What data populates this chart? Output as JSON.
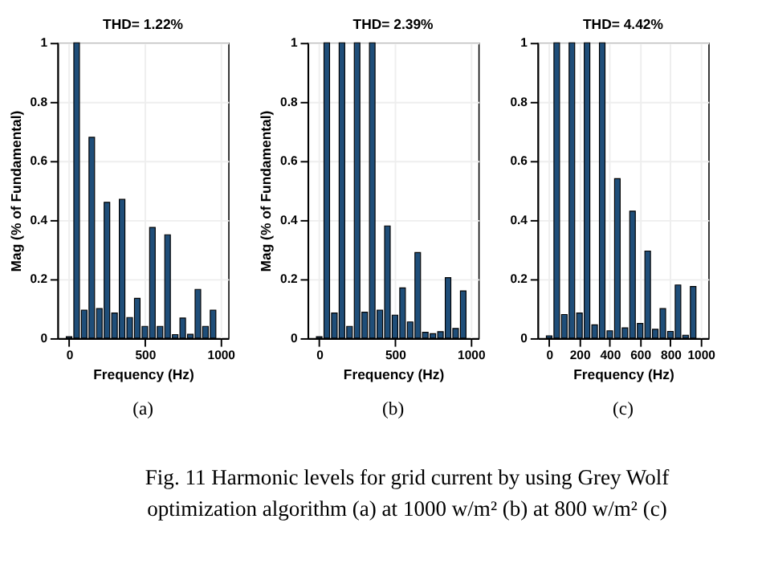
{
  "chart_data": [
    {
      "type": "bar",
      "title": "THD= 1.22%",
      "xlabel": "Frequency (Hz)",
      "ylabel": "Mag (% of Fundamental)",
      "x": [
        0,
        50,
        100,
        150,
        200,
        250,
        300,
        350,
        400,
        450,
        500,
        550,
        600,
        650,
        700,
        750,
        800,
        850,
        900,
        950
      ],
      "color": "#1f4e79",
      "values": [
        0.005,
        1,
        0.095,
        0.68,
        0.1,
        0.46,
        0.085,
        0.47,
        0.07,
        0.135,
        0.04,
        0.375,
        0.04,
        0.35,
        0.012,
        0.068,
        0.013,
        0.165,
        0.04,
        0.095
      ],
      "xlim": [
        -25,
        1000
      ],
      "xticks": [
        0,
        500,
        1000
      ],
      "ylim": [
        0,
        1
      ],
      "yticks": [
        0,
        0.2,
        0.4,
        0.6,
        0.8,
        1
      ],
      "grid": true,
      "annotations": [
        "(a)",
        "Fig. 11 Harmonic levels for grid current by using Grey Wolf",
        "optimization algorithm (a) at 1000 w/m² (b) at 800 w/m² (c)"
      ]
    },
    {
      "type": "bar",
      "title": "THD= 2.39%",
      "xlabel": "Frequency (Hz)",
      "ylabel": "Mag (% of Fundamental)",
      "x": [
        0,
        50,
        100,
        150,
        200,
        250,
        300,
        350,
        400,
        450,
        500,
        550,
        600,
        650,
        700,
        750,
        800,
        850,
        900,
        950
      ],
      "color": "#1f4e79",
      "values": [
        0.005,
        1,
        0.085,
        1,
        0.04,
        1,
        0.088,
        1,
        0.095,
        0.38,
        0.078,
        0.17,
        0.055,
        0.29,
        0.02,
        0.015,
        0.022,
        0.205,
        0.033,
        0.16
      ],
      "xlim": [
        -25,
        1000
      ],
      "xticks": [
        0,
        500,
        1000
      ],
      "ylim": [
        0,
        1
      ],
      "yticks": [
        0,
        0.2,
        0.4,
        0.6,
        0.8,
        1
      ],
      "grid": true,
      "annotations": [
        "(b)"
      ]
    },
    {
      "type": "bar",
      "title": "THD= 4.42%",
      "xlabel": "Frequency (Hz)",
      "x": [
        0,
        50,
        100,
        150,
        200,
        250,
        300,
        350,
        400,
        450,
        500,
        550,
        600,
        650,
        700,
        750,
        800,
        850,
        900,
        950
      ],
      "color": "#1f4e79",
      "values": [
        0.008,
        1,
        0.08,
        1,
        0.085,
        1,
        0.045,
        1,
        0.025,
        0.54,
        0.035,
        0.43,
        0.05,
        0.295,
        0.03,
        0.1,
        0.023,
        0.18,
        0.01,
        0.175
      ],
      "xlim": [
        -25,
        1000
      ],
      "xticks": [
        0,
        200,
        400,
        600,
        800,
        1000
      ],
      "ylim": [
        0,
        1
      ],
      "yticks": [
        0,
        0.2,
        0.4,
        0.6,
        0.8,
        1
      ],
      "grid": true,
      "annotations": [
        "(c)"
      ]
    }
  ]
}
